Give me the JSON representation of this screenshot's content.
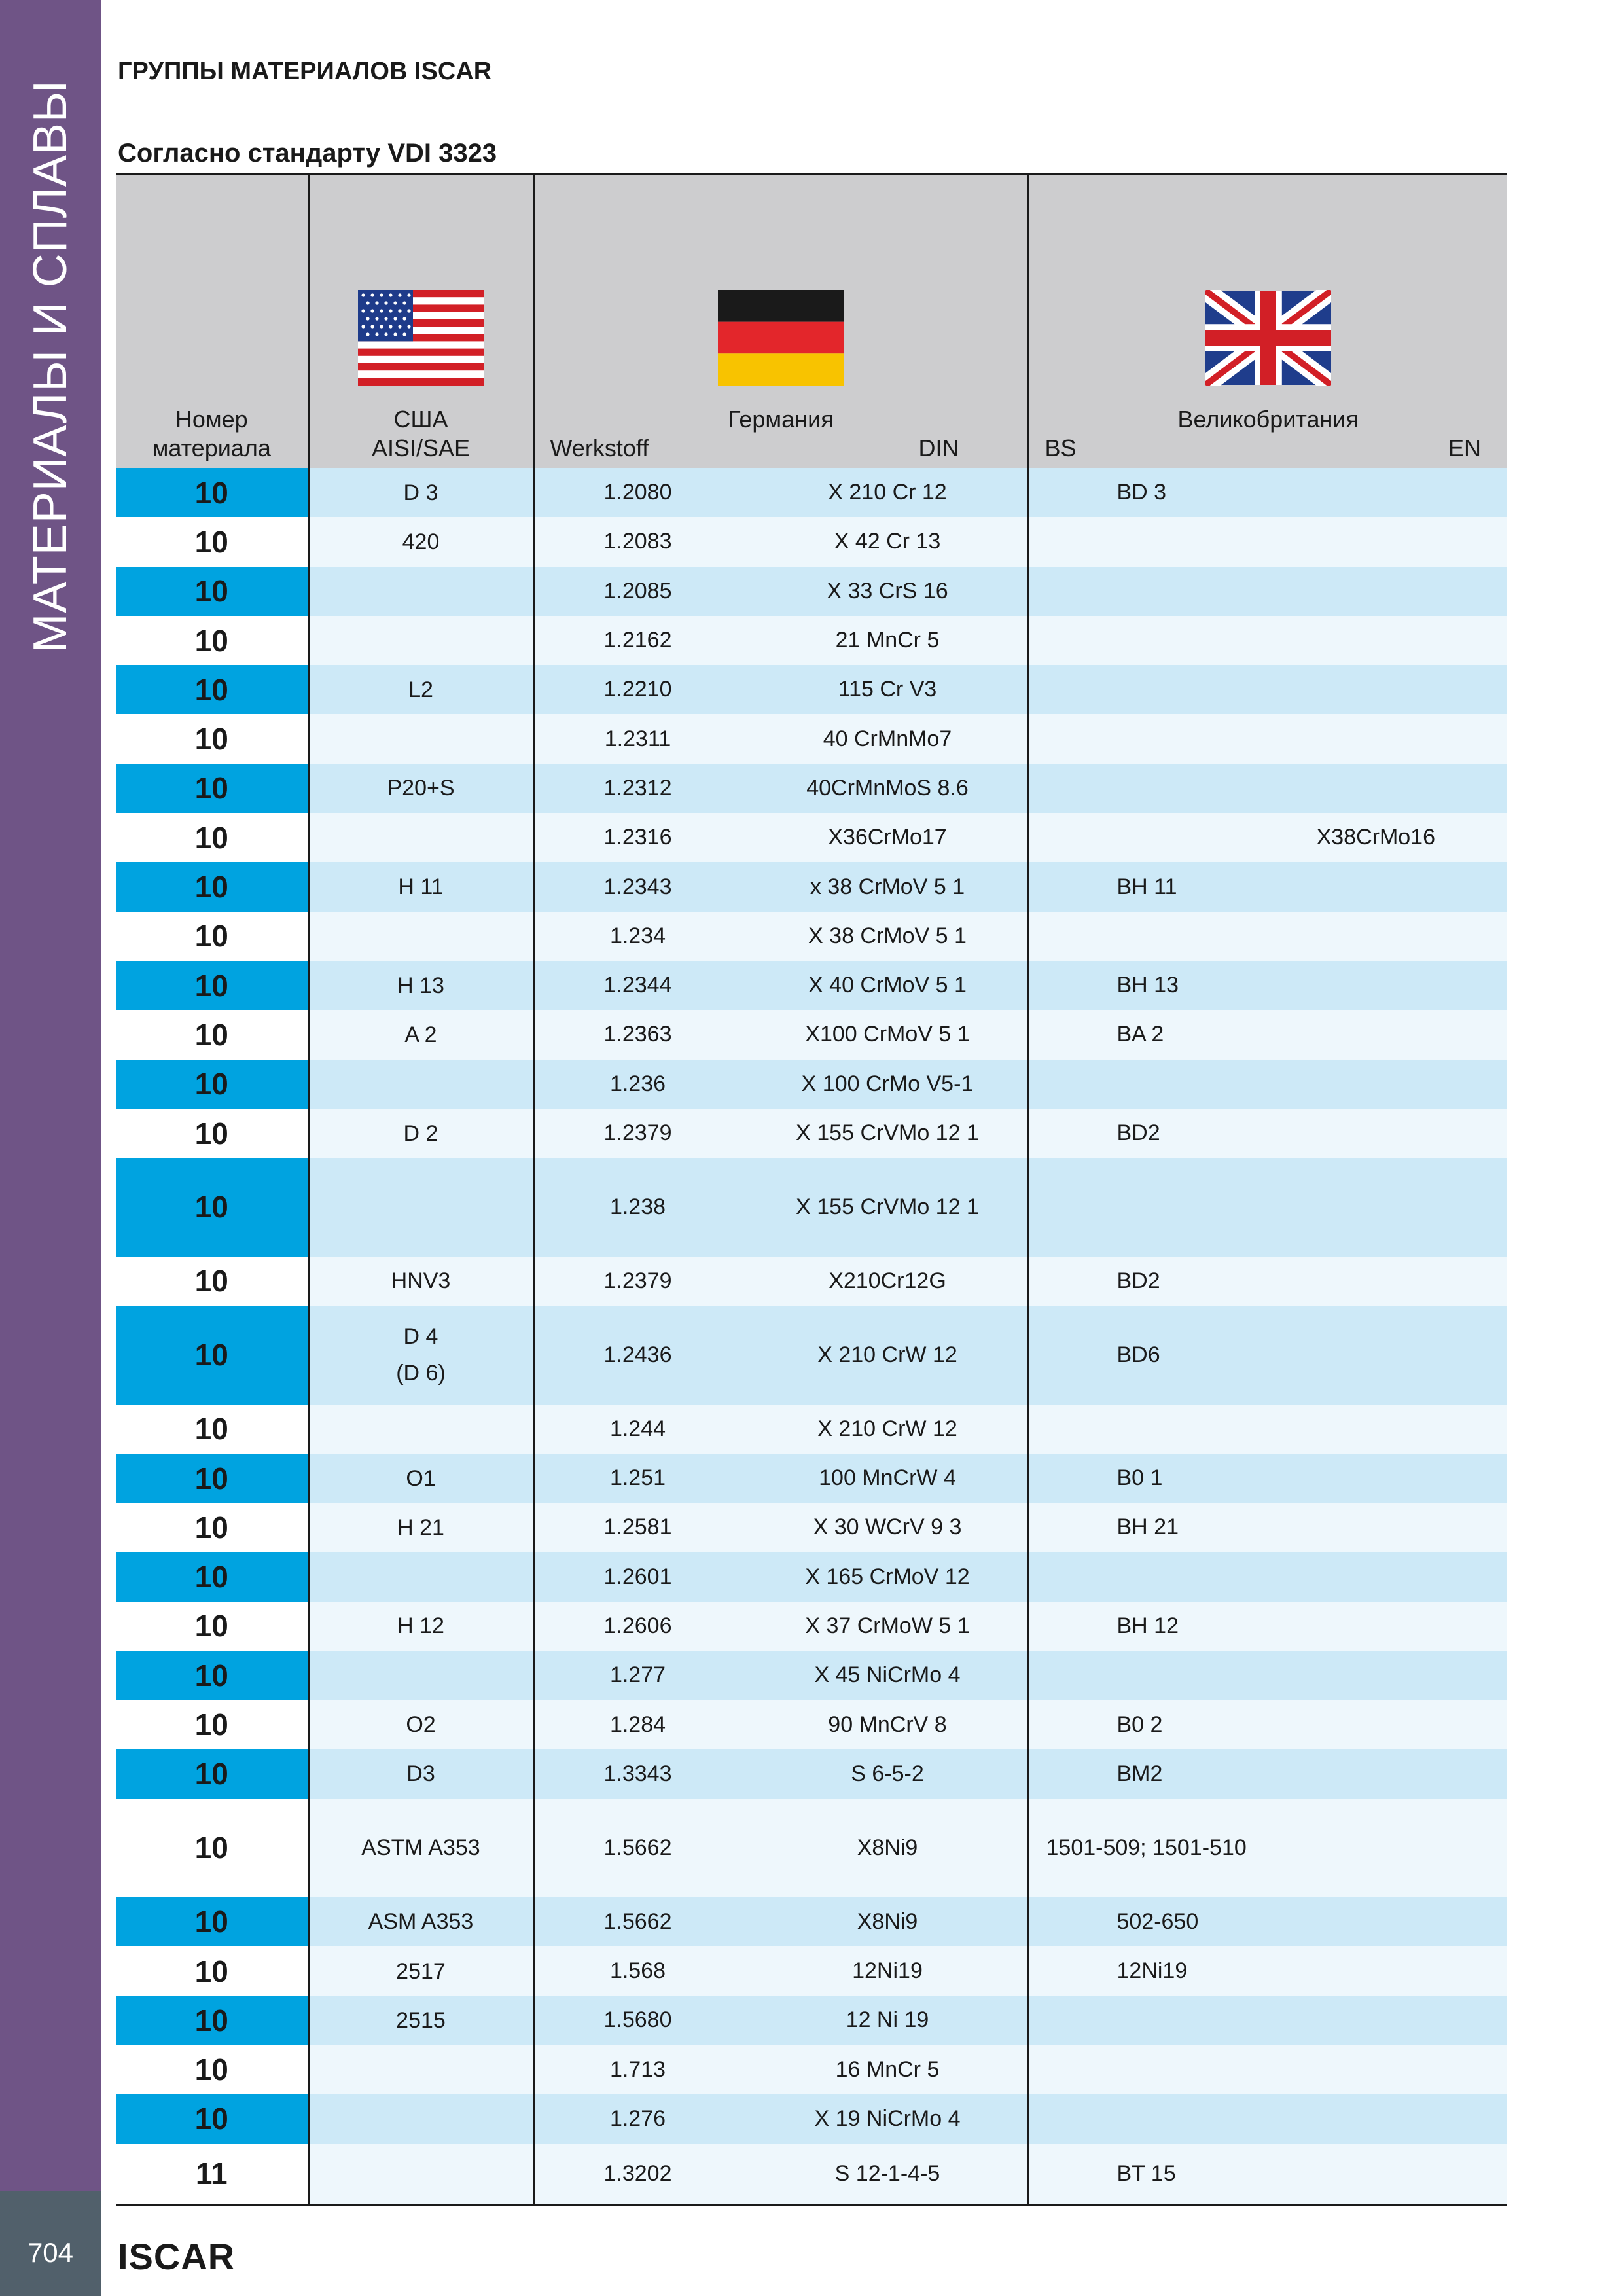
{
  "sidebar": {
    "text": "МАТЕРИАЛЫ И СПЛАВЫ"
  },
  "page_title": "ГРУППЫ МАТЕРИАЛОВ ISCAR",
  "subtitle": "Согласно стандарту VDI 3323",
  "header": {
    "num_line1": "Номер",
    "num_line2": "материала",
    "usa_country": "США",
    "usa_std": "AISI/SAE",
    "germany_country": "Германия",
    "germany_werkstoff": "Werkstoff",
    "germany_din": "DIN",
    "uk_country": "Великобритания",
    "uk_bs": "BS",
    "uk_en": "EN"
  },
  "colors": {
    "sidebar": "#6f5486",
    "accent": "#00a3e0",
    "row_light": "#cde9f7",
    "header_bg": "#cdcdcf"
  },
  "rows": [
    {
      "num": "10",
      "usa": "D 3",
      "usa2": "",
      "werkstoff": "1.2080",
      "din": "X 210 Cr 12",
      "bs": "BD 3",
      "en": "",
      "style": "light",
      "h": "n"
    },
    {
      "num": "10",
      "usa": "420",
      "usa2": "",
      "werkstoff": "1.2083",
      "din": "X 42 Cr 13",
      "bs": "",
      "en": "",
      "style": "white",
      "h": "n"
    },
    {
      "num": "10",
      "usa": "",
      "usa2": "",
      "werkstoff": "1.2085",
      "din": "X 33 CrS 16",
      "bs": "",
      "en": "",
      "style": "light",
      "h": "n"
    },
    {
      "num": "10",
      "usa": "",
      "usa2": "",
      "werkstoff": "1.2162",
      "din": "21 MnCr 5",
      "bs": "",
      "en": "",
      "style": "white",
      "h": "n"
    },
    {
      "num": "10",
      "usa": "L2",
      "usa2": "",
      "werkstoff": "1.2210",
      "din": "115 Cr V3",
      "bs": "",
      "en": "",
      "style": "light",
      "h": "n"
    },
    {
      "num": "10",
      "usa": "",
      "usa2": "",
      "werkstoff": "1.2311",
      "din": "40 CrMnMo7",
      "bs": "",
      "en": "",
      "style": "white",
      "h": "n"
    },
    {
      "num": "10",
      "usa": "P20+S",
      "usa2": "",
      "werkstoff": "1.2312",
      "din": "40CrMnMoS 8.6",
      "bs": "",
      "en": "",
      "style": "light",
      "h": "n"
    },
    {
      "num": "10",
      "usa": "",
      "usa2": "",
      "werkstoff": "1.2316",
      "din": "X36CrMo17",
      "bs": "",
      "en": "X38CrMo16",
      "style": "white",
      "h": "n"
    },
    {
      "num": "10",
      "usa": "H 11",
      "usa2": "",
      "werkstoff": "1.2343",
      "din": "x 38 CrMoV 5 1",
      "bs": "BH 11",
      "en": "",
      "style": "light",
      "h": "n"
    },
    {
      "num": "10",
      "usa": "",
      "usa2": "",
      "werkstoff": "1.234",
      "din": "X 38 CrMoV 5 1",
      "bs": "",
      "en": "",
      "style": "white",
      "h": "n"
    },
    {
      "num": "10",
      "usa": "H 13",
      "usa2": "",
      "werkstoff": "1.2344",
      "din": "X 40 CrMoV 5 1",
      "bs": "BH 13",
      "en": "",
      "style": "light",
      "h": "n"
    },
    {
      "num": "10",
      "usa": "A 2",
      "usa2": "",
      "werkstoff": "1.2363",
      "din": "X100 CrMoV 5 1",
      "bs": "BA 2",
      "en": "",
      "style": "white",
      "h": "n"
    },
    {
      "num": "10",
      "usa": "",
      "usa2": "",
      "werkstoff": "1.236",
      "din": "X 100 CrMo V5-1",
      "bs": "",
      "en": "",
      "style": "light",
      "h": "n"
    },
    {
      "num": "10",
      "usa": "D 2",
      "usa2": "",
      "werkstoff": "1.2379",
      "din": "X 155 CrVMo 12 1",
      "bs": "BD2",
      "en": "",
      "style": "white",
      "h": "n"
    },
    {
      "num": "10",
      "usa": "",
      "usa2": "",
      "werkstoff": "1.238",
      "din": "X 155 CrVMo 12 1",
      "bs": "",
      "en": "",
      "style": "light",
      "h": "t"
    },
    {
      "num": "10",
      "usa": "HNV3",
      "usa2": "",
      "werkstoff": "1.2379",
      "din": "X210Cr12G",
      "bs": "BD2",
      "en": "",
      "style": "white",
      "h": "n"
    },
    {
      "num": "10",
      "usa": "D 4",
      "usa2": "(D 6)",
      "werkstoff": "1.2436",
      "din": "X 210  CrW  12",
      "bs": "BD6",
      "en": "",
      "style": "light",
      "h": "t"
    },
    {
      "num": "10",
      "usa": "",
      "usa2": "",
      "werkstoff": "1.244",
      "din": "X 210  CrW  12",
      "bs": "",
      "en": "",
      "style": "white",
      "h": "n"
    },
    {
      "num": "10",
      "usa": "O1",
      "usa2": "",
      "werkstoff": "1.251",
      "din": "100 MnCrW 4",
      "bs": "B0 1",
      "en": "",
      "style": "light",
      "h": "n"
    },
    {
      "num": "10",
      "usa": "H 21",
      "usa2": "",
      "werkstoff": "1.2581",
      "din": "X 30 WCrV 9  3",
      "bs": "BH 21",
      "en": "",
      "style": "white",
      "h": "n"
    },
    {
      "num": "10",
      "usa": "",
      "usa2": "",
      "werkstoff": "1.2601",
      "din": "X 165 CrMoV 12",
      "bs": "",
      "en": "",
      "style": "light",
      "h": "n"
    },
    {
      "num": "10",
      "usa": "H 12",
      "usa2": "",
      "werkstoff": "1.2606",
      "din": "X 37 CrMoW 5 1",
      "bs": "BH 12",
      "en": "",
      "style": "white",
      "h": "n"
    },
    {
      "num": "10",
      "usa": "",
      "usa2": "",
      "werkstoff": "1.277",
      "din": "X 45 NiCrMo 4",
      "bs": "",
      "en": "",
      "style": "light",
      "h": "n"
    },
    {
      "num": "10",
      "usa": "O2",
      "usa2": "",
      "werkstoff": "1.284",
      "din": "90 MnCrV 8",
      "bs": "B0 2",
      "en": "",
      "style": "white",
      "h": "n"
    },
    {
      "num": "10",
      "usa": "D3",
      "usa2": "",
      "werkstoff": "1.3343",
      "din": "S 6-5-2",
      "bs": "BM2",
      "en": "",
      "style": "light",
      "h": "n"
    },
    {
      "num": "10",
      "usa": "ASTM A353",
      "usa2": "",
      "werkstoff": "1.5662",
      "din": "X8Ni9",
      "bs": "1501-509; 1501-510",
      "en": "",
      "style": "white",
      "h": "t"
    },
    {
      "num": "10",
      "usa": "ASM A353",
      "usa2": "",
      "werkstoff": "1.5662",
      "din": "X8Ni9",
      "bs": "502-650",
      "en": "",
      "style": "light",
      "h": "n"
    },
    {
      "num": "10",
      "usa": "2517",
      "usa2": "",
      "werkstoff": "1.568",
      "din": "12Ni19",
      "bs": "12Ni19",
      "en": "",
      "style": "white",
      "h": "n"
    },
    {
      "num": "10",
      "usa": "2515",
      "usa2": "",
      "werkstoff": "1.5680",
      "din": "12 Ni 19",
      "bs": "",
      "en": "",
      "style": "light",
      "h": "n"
    },
    {
      "num": "10",
      "usa": "",
      "usa2": "",
      "werkstoff": "1.713",
      "din": "16 MnCr 5",
      "bs": "",
      "en": "",
      "style": "white",
      "h": "n"
    },
    {
      "num": "10",
      "usa": "",
      "usa2": "",
      "werkstoff": "1.276",
      "din": "X 19 NiCrMo 4",
      "bs": "",
      "en": "",
      "style": "light",
      "h": "n"
    },
    {
      "num": "11",
      "usa": "",
      "usa2": "",
      "werkstoff": "1.3202",
      "din": "S 12-1-4-5",
      "bs": "BT 15",
      "en": "",
      "style": "white",
      "h": "m"
    }
  ],
  "footer": {
    "page_number": "704",
    "brand": "ISCAR"
  }
}
